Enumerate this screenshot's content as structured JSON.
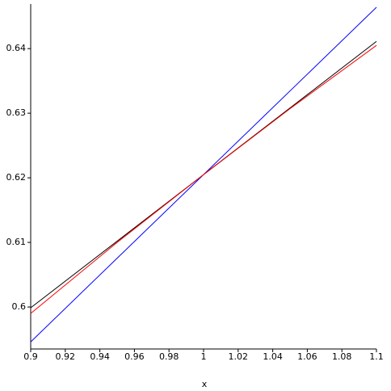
{
  "chart_data": {
    "type": "line",
    "xlabel": "x",
    "x": [
      0.9,
      0.95,
      1,
      1.05,
      1.1
    ],
    "series": [
      {
        "color": "#0000ff",
        "values": [
          0.5946,
          0.60755,
          0.6205,
          0.63345,
          0.6464
        ]
      },
      {
        "color": "#000000",
        "values": [
          0.59988,
          0.61019,
          0.6205,
          0.63081,
          0.64112
        ]
      },
      {
        "color": "#ff0000",
        "values": [
          0.599,
          0.61,
          0.6205,
          0.6307,
          0.6405
        ]
      }
    ],
    "xlim": [
      0.9,
      1.1
    ],
    "ylim": [
      0.5935,
      0.6469
    ],
    "xticks": [
      0.9,
      0.92,
      0.94,
      0.96,
      0.98,
      1,
      1.02,
      1.04,
      1.06,
      1.08,
      1.1
    ],
    "yticks": [
      0.6,
      0.61,
      0.62,
      0.63,
      0.64
    ]
  }
}
